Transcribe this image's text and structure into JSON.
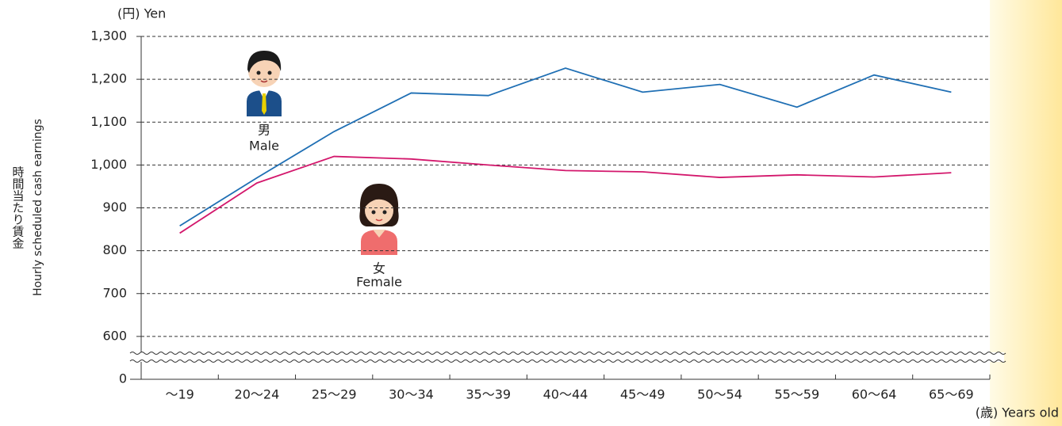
{
  "chart_data": {
    "type": "line",
    "y_unit_label": "(円) Yen",
    "y_axis_label_ja": "時間当たり賃金",
    "y_axis_label_en": "Hourly scheduled cash earnings",
    "x_axis_label": "(歳) Years old",
    "categories": [
      "～19",
      "20～24",
      "25～29",
      "30～34",
      "35～39",
      "40～44",
      "45～49",
      "50～54",
      "55～59",
      "60～64",
      "65～69"
    ],
    "series": [
      {
        "name": "Male",
        "name_ja": "男",
        "color": "#1f6fb4",
        "values": [
          858,
          970,
          1078,
          1168,
          1162,
          1226,
          1170,
          1188,
          1135,
          1210,
          1170
        ]
      },
      {
        "name": "Female",
        "name_ja": "女",
        "color": "#d3176c",
        "values": [
          841,
          958,
          1020,
          1014,
          1000,
          987,
          984,
          971,
          977,
          972,
          982
        ]
      }
    ],
    "ylim": [
      500,
      1300
    ],
    "axis_break": true,
    "yticks": [
      0,
      600,
      700,
      800,
      900,
      {
        "value": 1000,
        "label": "1,000"
      },
      {
        "value": 1100,
        "label": "1,100"
      },
      {
        "value": 1200,
        "label": "1,200"
      },
      {
        "value": 1300,
        "label": "1,300"
      }
    ],
    "grid": true
  }
}
